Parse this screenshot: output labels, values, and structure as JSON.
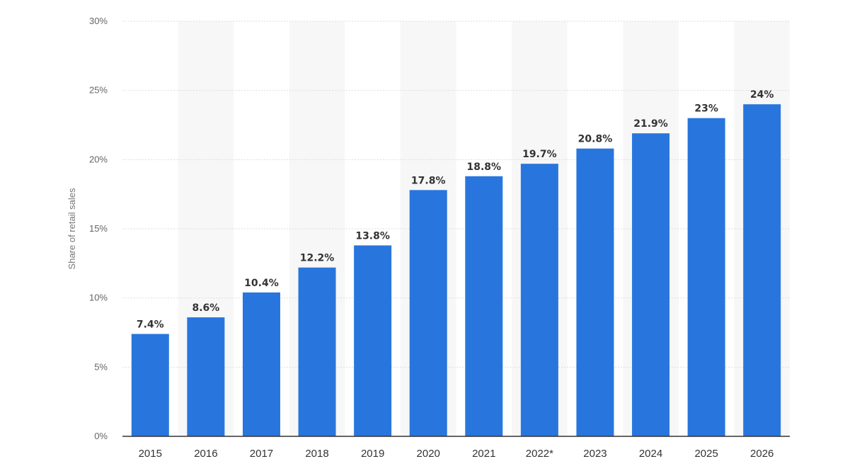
{
  "chart_data": {
    "type": "bar",
    "title": "",
    "xlabel": "",
    "ylabel": "Share of retail sales",
    "categories": [
      "2015",
      "2016",
      "2017",
      "2018",
      "2019",
      "2020",
      "2021",
      "2022*",
      "2023",
      "2024",
      "2025",
      "2026"
    ],
    "values": [
      7.4,
      8.6,
      10.4,
      12.2,
      13.8,
      17.8,
      18.8,
      19.7,
      20.8,
      21.9,
      23,
      24
    ],
    "data_labels": [
      "7.4%",
      "8.6%",
      "10.4%",
      "12.2%",
      "13.8%",
      "17.8%",
      "18.8%",
      "19.7%",
      "20.8%",
      "21.9%",
      "23%",
      "24%"
    ],
    "ylim": [
      0,
      30
    ],
    "yticks": [
      0,
      5,
      10,
      15,
      20,
      25,
      30
    ],
    "ytick_labels": [
      "0%",
      "5%",
      "10%",
      "15%",
      "20%",
      "25%",
      "30%"
    ],
    "grid": true,
    "legend": "none",
    "bar_color": "#2876dd",
    "band_color": "#f7f7f7",
    "grid_color": "#dddddd"
  }
}
